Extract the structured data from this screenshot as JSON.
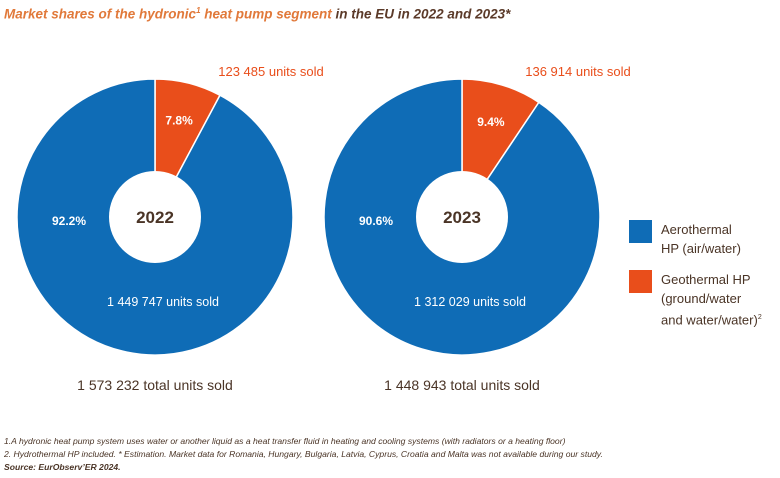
{
  "header": {
    "title_part1": "Market shares of the hydronic",
    "title_sup": "1",
    "title_part2": " heat pump segment",
    "title_part3": " in the EU in 2022 and 2023*"
  },
  "colors": {
    "aerothermal": "#0f6cb6",
    "geothermal": "#e94e1b",
    "label_orange": "#e94e1b",
    "text_brown": "#4a3426",
    "title_orange": "#e1793a"
  },
  "chart_data": [
    {
      "type": "pie",
      "title": "2022",
      "categories": [
        "Aerothermal HP (air/water)",
        "Geothermal HP (ground/water and water/water)"
      ],
      "values": [
        92.2,
        7.8
      ],
      "value_labels": [
        "92.2%",
        "7.8%"
      ],
      "units_sold": [
        "1 449 747 units sold",
        "123 485 units sold"
      ],
      "total": "1 573 232 total units sold"
    },
    {
      "type": "pie",
      "title": "2023",
      "categories": [
        "Aerothermal HP (air/water)",
        "Geothermal HP (ground/water and water/water)"
      ],
      "values": [
        90.6,
        9.4
      ],
      "value_labels": [
        "90.6%",
        "9.4%"
      ],
      "units_sold": [
        "1 312 029 units sold",
        "136 914 units sold"
      ],
      "total": "1 448 943 total units sold"
    }
  ],
  "legend": {
    "aerothermal": "Aerothermal\nHP (air/water)",
    "geothermal": "Geothermal HP\n(ground/water\nand water/water)",
    "geothermal_sup": "2"
  },
  "notes": {
    "line1": "1.A hydronic heat pump system uses water or another liquid as a heat transfer fluid in heating and cooling systems (with radiators or a heating floor)",
    "line2": "2. Hydrothermal HP included. * Estimation. Market data for Romania, Hungary, Bulgaria, Latvia, Cyprus, Croatia and Malta was not available during our study.",
    "source": "Source: EurObserv’ER 2024."
  }
}
